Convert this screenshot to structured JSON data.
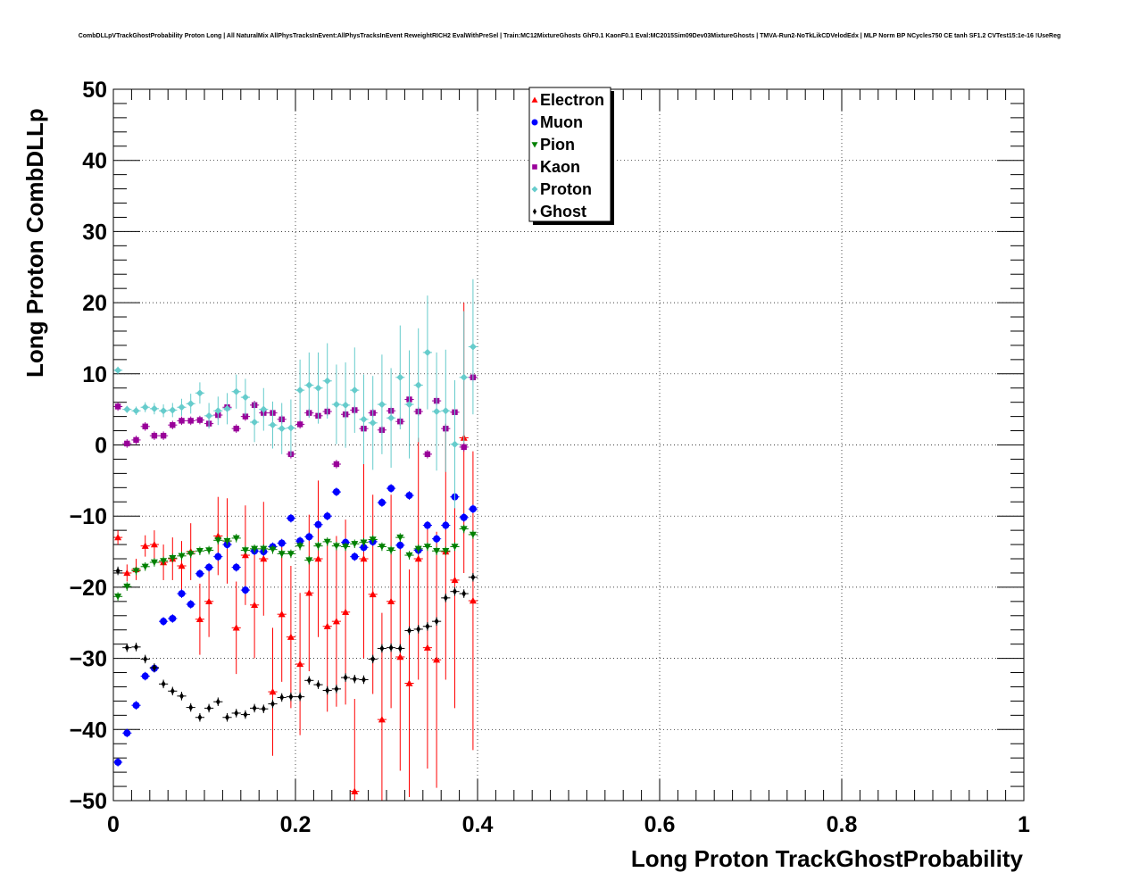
{
  "chart_data": {
    "type": "scatter",
    "title": "CombDLLpVTrackGhostProbability Proton Long | All NaturalMix AllPhysTracksInEvent:AllPhysTracksInEvent ReweightRICH2 EvalWithPreSel | Train:MC12MixtureGhosts GhF0.1 KaonF0.1 Eval:MC2015Sim09Dev03MixtureGhosts | TMVA-Run2-NoTkLikCDVelodEdx | MLP Norm BP NCycles750 CE tanh SF1.2 CVTest15:1e-16 !UseReg",
    "xlabel": "Long Proton TrackGhostProbability",
    "ylabel": "Long Proton CombDLLp",
    "xlim": [
      0,
      1
    ],
    "ylim": [
      -50,
      50
    ],
    "x_ticks": [
      "0",
      "0.2",
      "0.4",
      "0.6",
      "0.8",
      "1"
    ],
    "y_ticks": [
      "50",
      "40",
      "30",
      "20",
      "10",
      "0",
      "−10",
      "−20",
      "−30",
      "−40",
      "−50"
    ],
    "grid": true,
    "legend_position": "top-center",
    "x": [
      0.005,
      0.015,
      0.025,
      0.035,
      0.045,
      0.055,
      0.065,
      0.075,
      0.085,
      0.095,
      0.105,
      0.115,
      0.125,
      0.135,
      0.145,
      0.155,
      0.165,
      0.175,
      0.185,
      0.195,
      0.205,
      0.215,
      0.225,
      0.235,
      0.245,
      0.255,
      0.265,
      0.275,
      0.285,
      0.295,
      0.305,
      0.315,
      0.325,
      0.335,
      0.345,
      0.355,
      0.365,
      0.375,
      0.385,
      0.395
    ],
    "series": [
      {
        "name": "Electron",
        "marker": "triangle-up",
        "color": "#ff0000",
        "values": [
          -13,
          -18,
          -17.5,
          -14.2,
          -14,
          -16.5,
          -16,
          -17,
          -15,
          -24.5,
          -22,
          -12.8,
          -13.5,
          -25.7,
          -15.5,
          -22.5,
          -16,
          -34.7,
          -23.8,
          -27,
          -30.8,
          -20.8,
          -16,
          -25.5,
          -24.8,
          -23.5,
          -48.7,
          -16,
          -21,
          -38.6,
          -22,
          -29.8,
          -33.5,
          -16,
          -28.5,
          -30.2,
          -15,
          -19,
          1,
          -21.9
        ],
        "errors": [
          1,
          1.2,
          1.5,
          1.5,
          2,
          2.5,
          3,
          3.5,
          4,
          5,
          5,
          5.5,
          6,
          6.5,
          7,
          7.5,
          8,
          9,
          9.5,
          10,
          10,
          11,
          11,
          12,
          12,
          13,
          13,
          14,
          14,
          15,
          15,
          16,
          16,
          17,
          17,
          18,
          18,
          18,
          19,
          21
        ]
      },
      {
        "name": "Muon",
        "marker": "circle",
        "color": "#0000ff",
        "values": [
          -44.6,
          -40.5,
          -36.6,
          -32.5,
          -31.4,
          -24.8,
          -24.4,
          -20.9,
          -22.4,
          -18.1,
          -17.2,
          -15.7,
          -14,
          -17.2,
          -20.4,
          -14.9,
          -15,
          -14.3,
          -13.8,
          -10.3,
          -13.5,
          -12.9,
          -11.2,
          -10,
          -6.6,
          -13.7,
          -15.7,
          -14.4,
          -13.6,
          -8.1,
          -6.1,
          -14.1,
          -7.1,
          -14.8,
          -11.3,
          -13.2,
          -11.3,
          -7.3,
          -10.2,
          -9
        ]
      },
      {
        "name": "Pion",
        "marker": "triangle-down",
        "color": "#008000",
        "values": [
          -21.3,
          -19.9,
          -17.7,
          -17.1,
          -16.5,
          -16.3,
          -15.9,
          -15.6,
          -15.3,
          -14.9,
          -14.8,
          -13.4,
          -13.5,
          -13.1,
          -14.8,
          -14.6,
          -14.6,
          -14.7,
          -15.3,
          -15.3,
          -14.2,
          -16.2,
          -14.2,
          -13.6,
          -14.2,
          -14.3,
          -13.9,
          -13.7,
          -13.3,
          -14.3,
          -14.8,
          -13,
          -15.5,
          -14.6,
          -14.3,
          -14.9,
          -14.9,
          -14.3,
          -11.8,
          -12.6
        ]
      },
      {
        "name": "Kaon",
        "marker": "square",
        "color": "#990099",
        "values": [
          5.4,
          0.2,
          0.7,
          2.6,
          1.3,
          1.3,
          2.8,
          3.4,
          3.4,
          3.5,
          3,
          4.2,
          5.3,
          2.3,
          4,
          5.6,
          4.5,
          4.5,
          3.6,
          -1.3,
          2.9,
          4.5,
          4.1,
          4.7,
          -2.7,
          4.3,
          4.9,
          2.3,
          4.5,
          2.1,
          4.8,
          3.3,
          6.4,
          4.7,
          -1.3,
          6.2,
          2.3,
          4.6,
          -0.3,
          9.5
        ]
      },
      {
        "name": "Proton",
        "marker": "diamond",
        "color": "#66cccc",
        "values": [
          10.5,
          5,
          4.8,
          5.3,
          5.1,
          4.8,
          4.9,
          5.3,
          5.8,
          7.3,
          4.1,
          4.8,
          5.1,
          7.5,
          6.7,
          3.2,
          5,
          2.8,
          2.3,
          2.4,
          7.7,
          8.4,
          8,
          9,
          5.7,
          5.6,
          7.7,
          3.6,
          3.1,
          5.7,
          3.8,
          9.5,
          5.7,
          8.4,
          13,
          4.7,
          4.8,
          0.1,
          9.5,
          13.8
        ],
        "errors": [
          0.5,
          0.5,
          0.6,
          0.7,
          0.8,
          0.9,
          1,
          1.2,
          1.4,
          1.5,
          1.8,
          2,
          2.2,
          2.4,
          2.6,
          2.8,
          3,
          3.3,
          3.6,
          4,
          4.3,
          4.6,
          5,
          5.3,
          5.6,
          6,
          6,
          6.3,
          6.6,
          7,
          7,
          7.3,
          7.6,
          8,
          8,
          8.3,
          8.6,
          9,
          9.3,
          9.5
        ]
      },
      {
        "name": "Ghost",
        "marker": "cross",
        "color": "#000000",
        "values": [
          -17.7,
          -28.5,
          -28.4,
          -30.1,
          -31.3,
          -33.6,
          -34.6,
          -35.3,
          -36.9,
          -38.3,
          -37,
          -36.1,
          -38.3,
          -37.7,
          -37.9,
          -37,
          -37.1,
          -36.4,
          -35.5,
          -35.4,
          -35.4,
          -33.1,
          -33.7,
          -34.5,
          -34.3,
          -32.7,
          -32.9,
          -33,
          -30.1,
          -28.6,
          -28.5,
          -28.6,
          -26.1,
          -25.9,
          -25.5,
          -24.8,
          -21.5,
          -20.6,
          -20.9,
          -18.6
        ]
      }
    ]
  }
}
